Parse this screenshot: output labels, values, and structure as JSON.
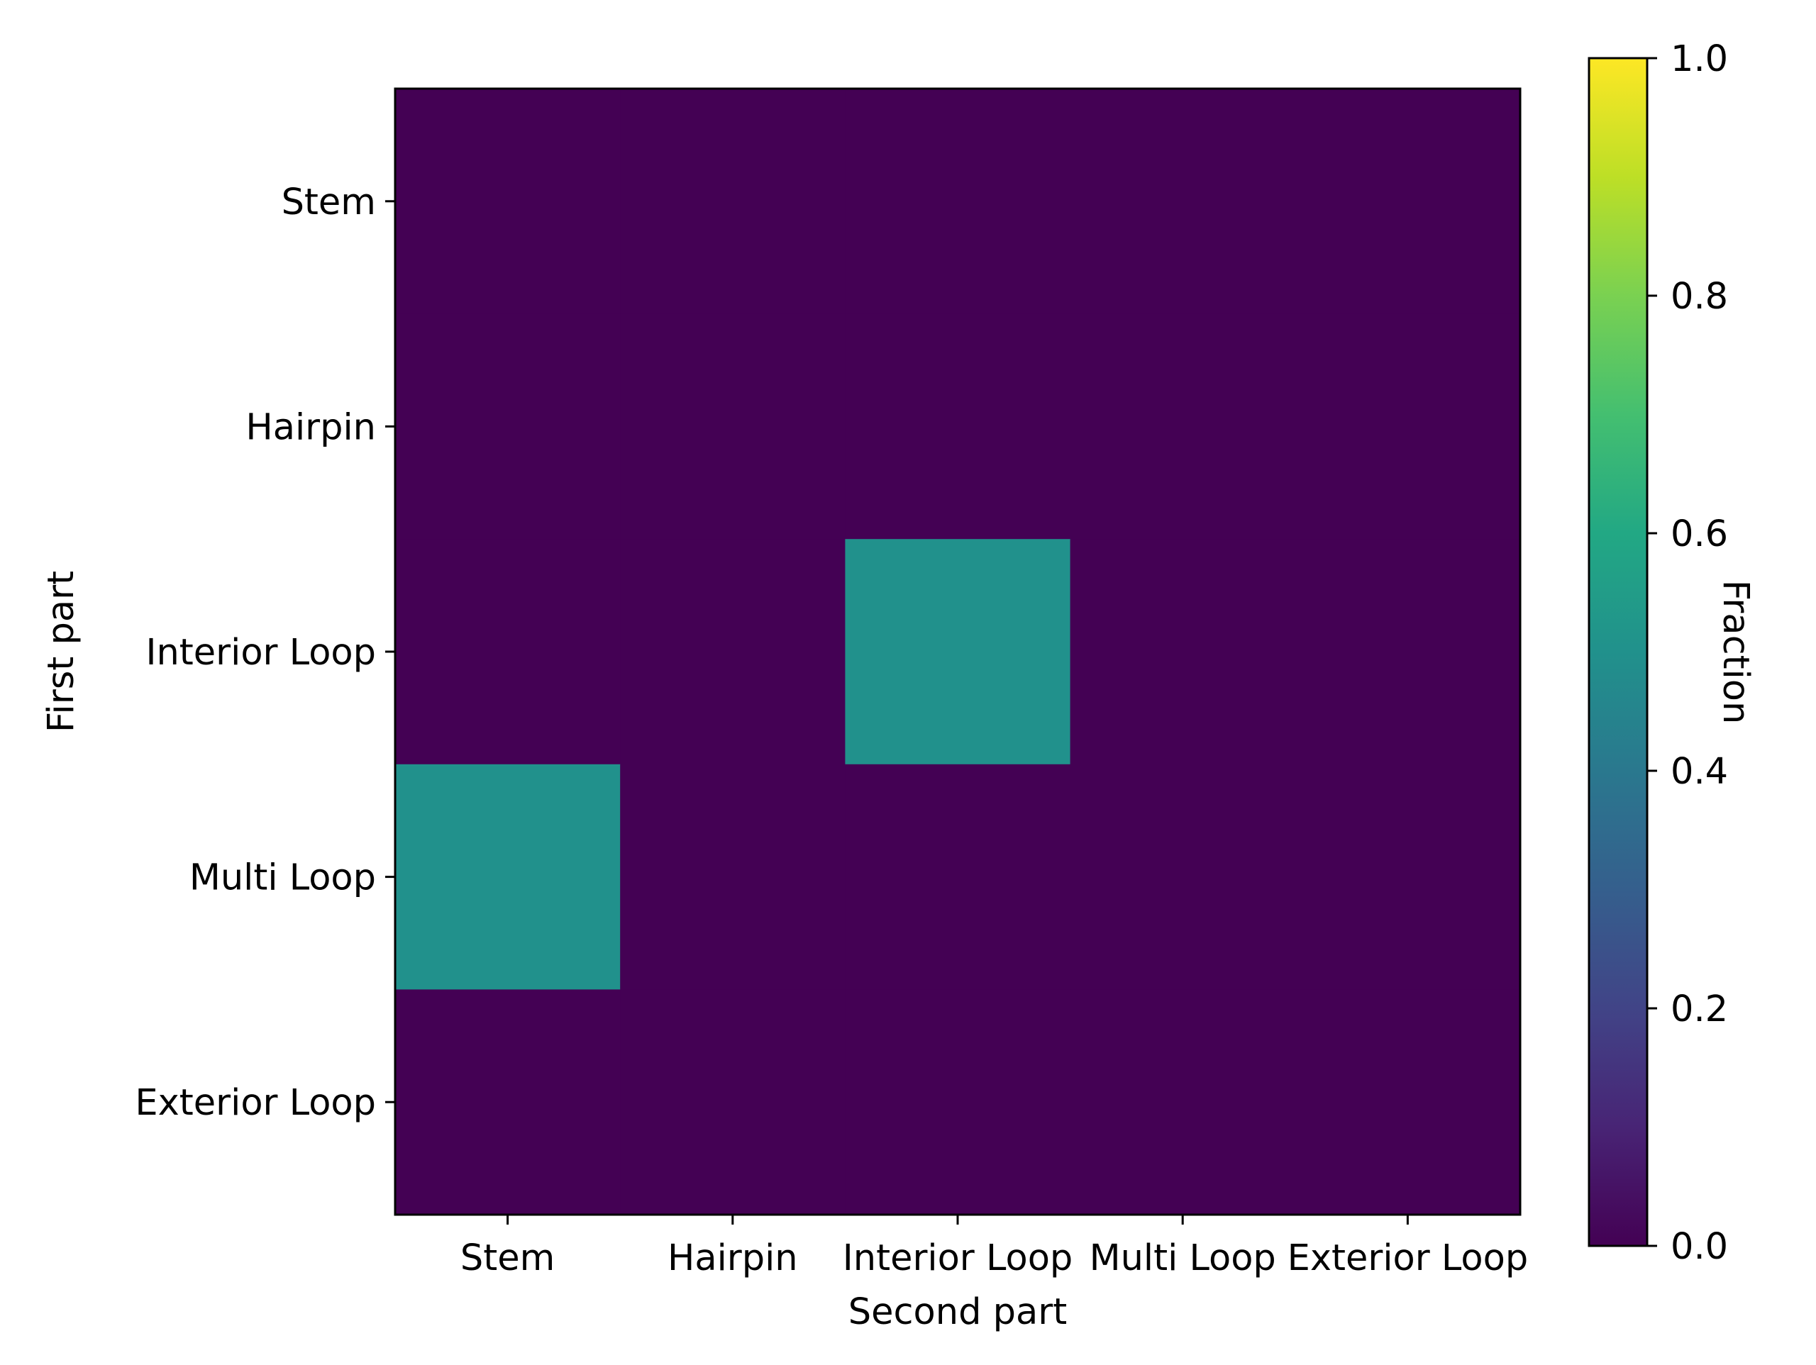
{
  "chart_data": {
    "type": "heatmap",
    "title": "",
    "xlabel": "Second part",
    "ylabel": "First part",
    "x_categories": [
      "Stem",
      "Hairpin",
      "Interior Loop",
      "Multi Loop",
      "Exterior Loop"
    ],
    "y_categories": [
      "Stem",
      "Hairpin",
      "Interior Loop",
      "Multi Loop",
      "Exterior Loop"
    ],
    "values": [
      [
        0,
        0,
        0,
        0,
        0
      ],
      [
        0,
        0,
        0,
        0,
        0
      ],
      [
        0,
        0,
        0.5,
        0,
        0
      ],
      [
        0.5,
        0,
        0,
        0,
        0
      ],
      [
        0,
        0,
        0,
        0,
        0
      ]
    ],
    "colorbar": {
      "label": "Fraction",
      "range": [
        0,
        1
      ],
      "ticks": [
        0.0,
        0.2,
        0.4,
        0.6,
        0.8,
        1.0
      ],
      "tick_labels": [
        "0.0",
        "0.2",
        "0.4",
        "0.6",
        "0.8",
        "1.0"
      ],
      "colormap": "viridis",
      "placement": "right"
    },
    "grid": false
  }
}
